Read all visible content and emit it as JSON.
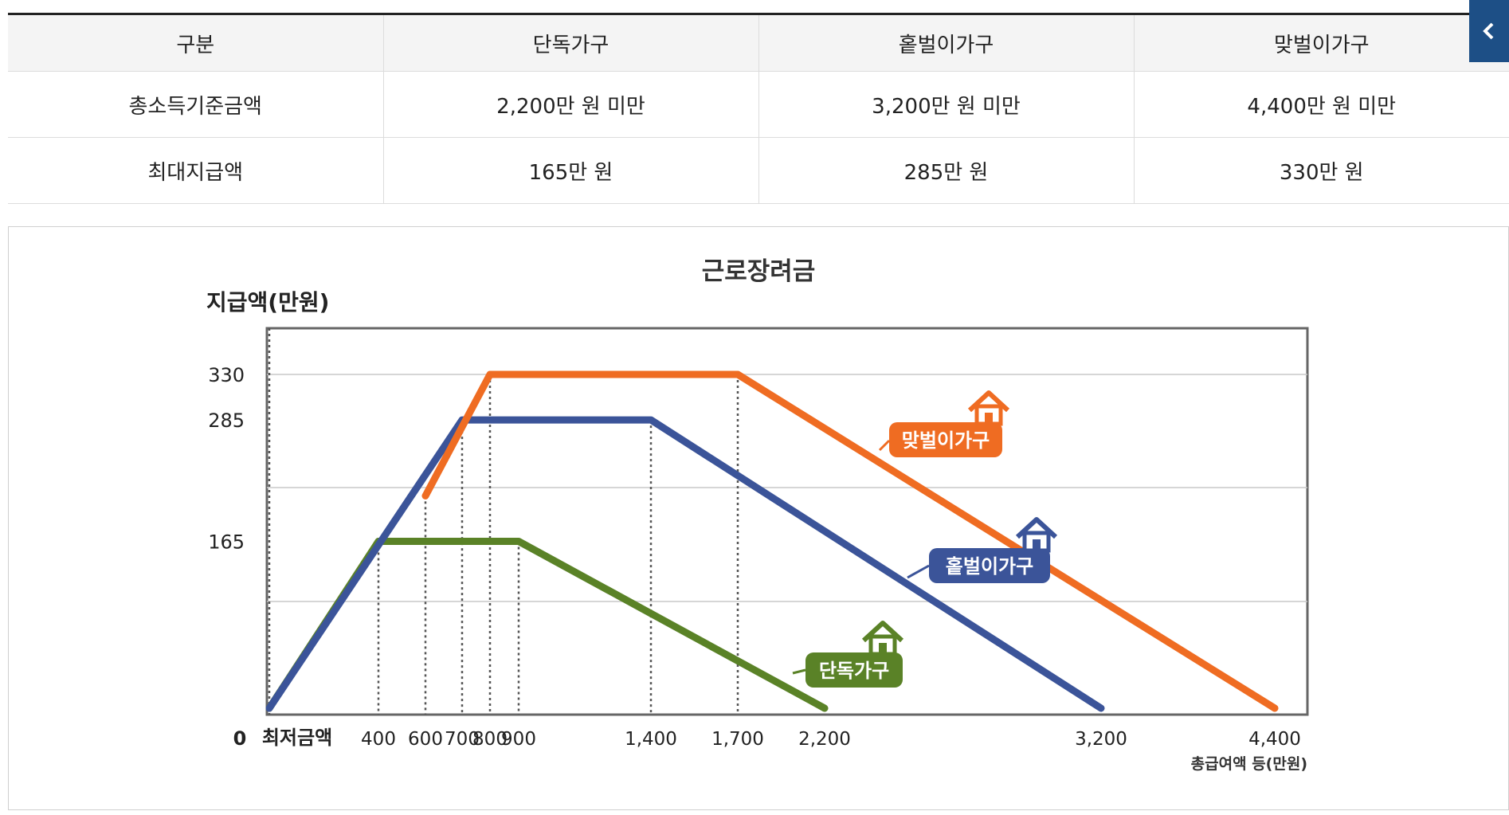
{
  "table": {
    "headers": [
      "구분",
      "단독가구",
      "홑벌이가구",
      "맞벌이가구"
    ],
    "rows": [
      [
        "총소득기준금액",
        "2,200만 원 미만",
        "3,200만 원 미만",
        "4,400만 원 미만"
      ],
      [
        "최대지급액",
        "165만 원",
        "285만 원",
        "330만 원"
      ]
    ]
  },
  "side_button": {
    "icon": "chevron-left-icon"
  },
  "chart_data": {
    "type": "line",
    "title": "근로장려금",
    "ylabel": "지급액(만원)",
    "xlabel": "총급여액 등(만원)",
    "x_origin_label": "0",
    "x_min_label": "최저금액",
    "x_ticks": [
      {
        "value": 400,
        "label": "400"
      },
      {
        "value": 600,
        "label": "600"
      },
      {
        "value": 700,
        "label": "700"
      },
      {
        "value": 800,
        "label": "800"
      },
      {
        "value": 900,
        "label": "900"
      },
      {
        "value": 1400,
        "label": "1,400"
      },
      {
        "value": 1700,
        "label": "1,700"
      },
      {
        "value": 2200,
        "label": "2,200"
      },
      {
        "value": 3200,
        "label": "3,200"
      },
      {
        "value": 4400,
        "label": "4,400"
      }
    ],
    "y_ticks": [
      165,
      285,
      330
    ],
    "grid": true,
    "series": [
      {
        "name": "단독가구",
        "color": "#5a8227",
        "points": [
          [
            0,
            0
          ],
          [
            400,
            165
          ],
          [
            900,
            165
          ],
          [
            2200,
            0
          ]
        ]
      },
      {
        "name": "홑벌이가구",
        "color": "#3b5499",
        "points": [
          [
            0,
            0
          ],
          [
            700,
            285
          ],
          [
            1400,
            285
          ],
          [
            3200,
            0
          ]
        ]
      },
      {
        "name": "맞벌이가구",
        "color": "#ef6c22",
        "points": [
          [
            600,
            210
          ],
          [
            800,
            330
          ],
          [
            1700,
            330
          ],
          [
            4400,
            0
          ]
        ]
      }
    ]
  }
}
